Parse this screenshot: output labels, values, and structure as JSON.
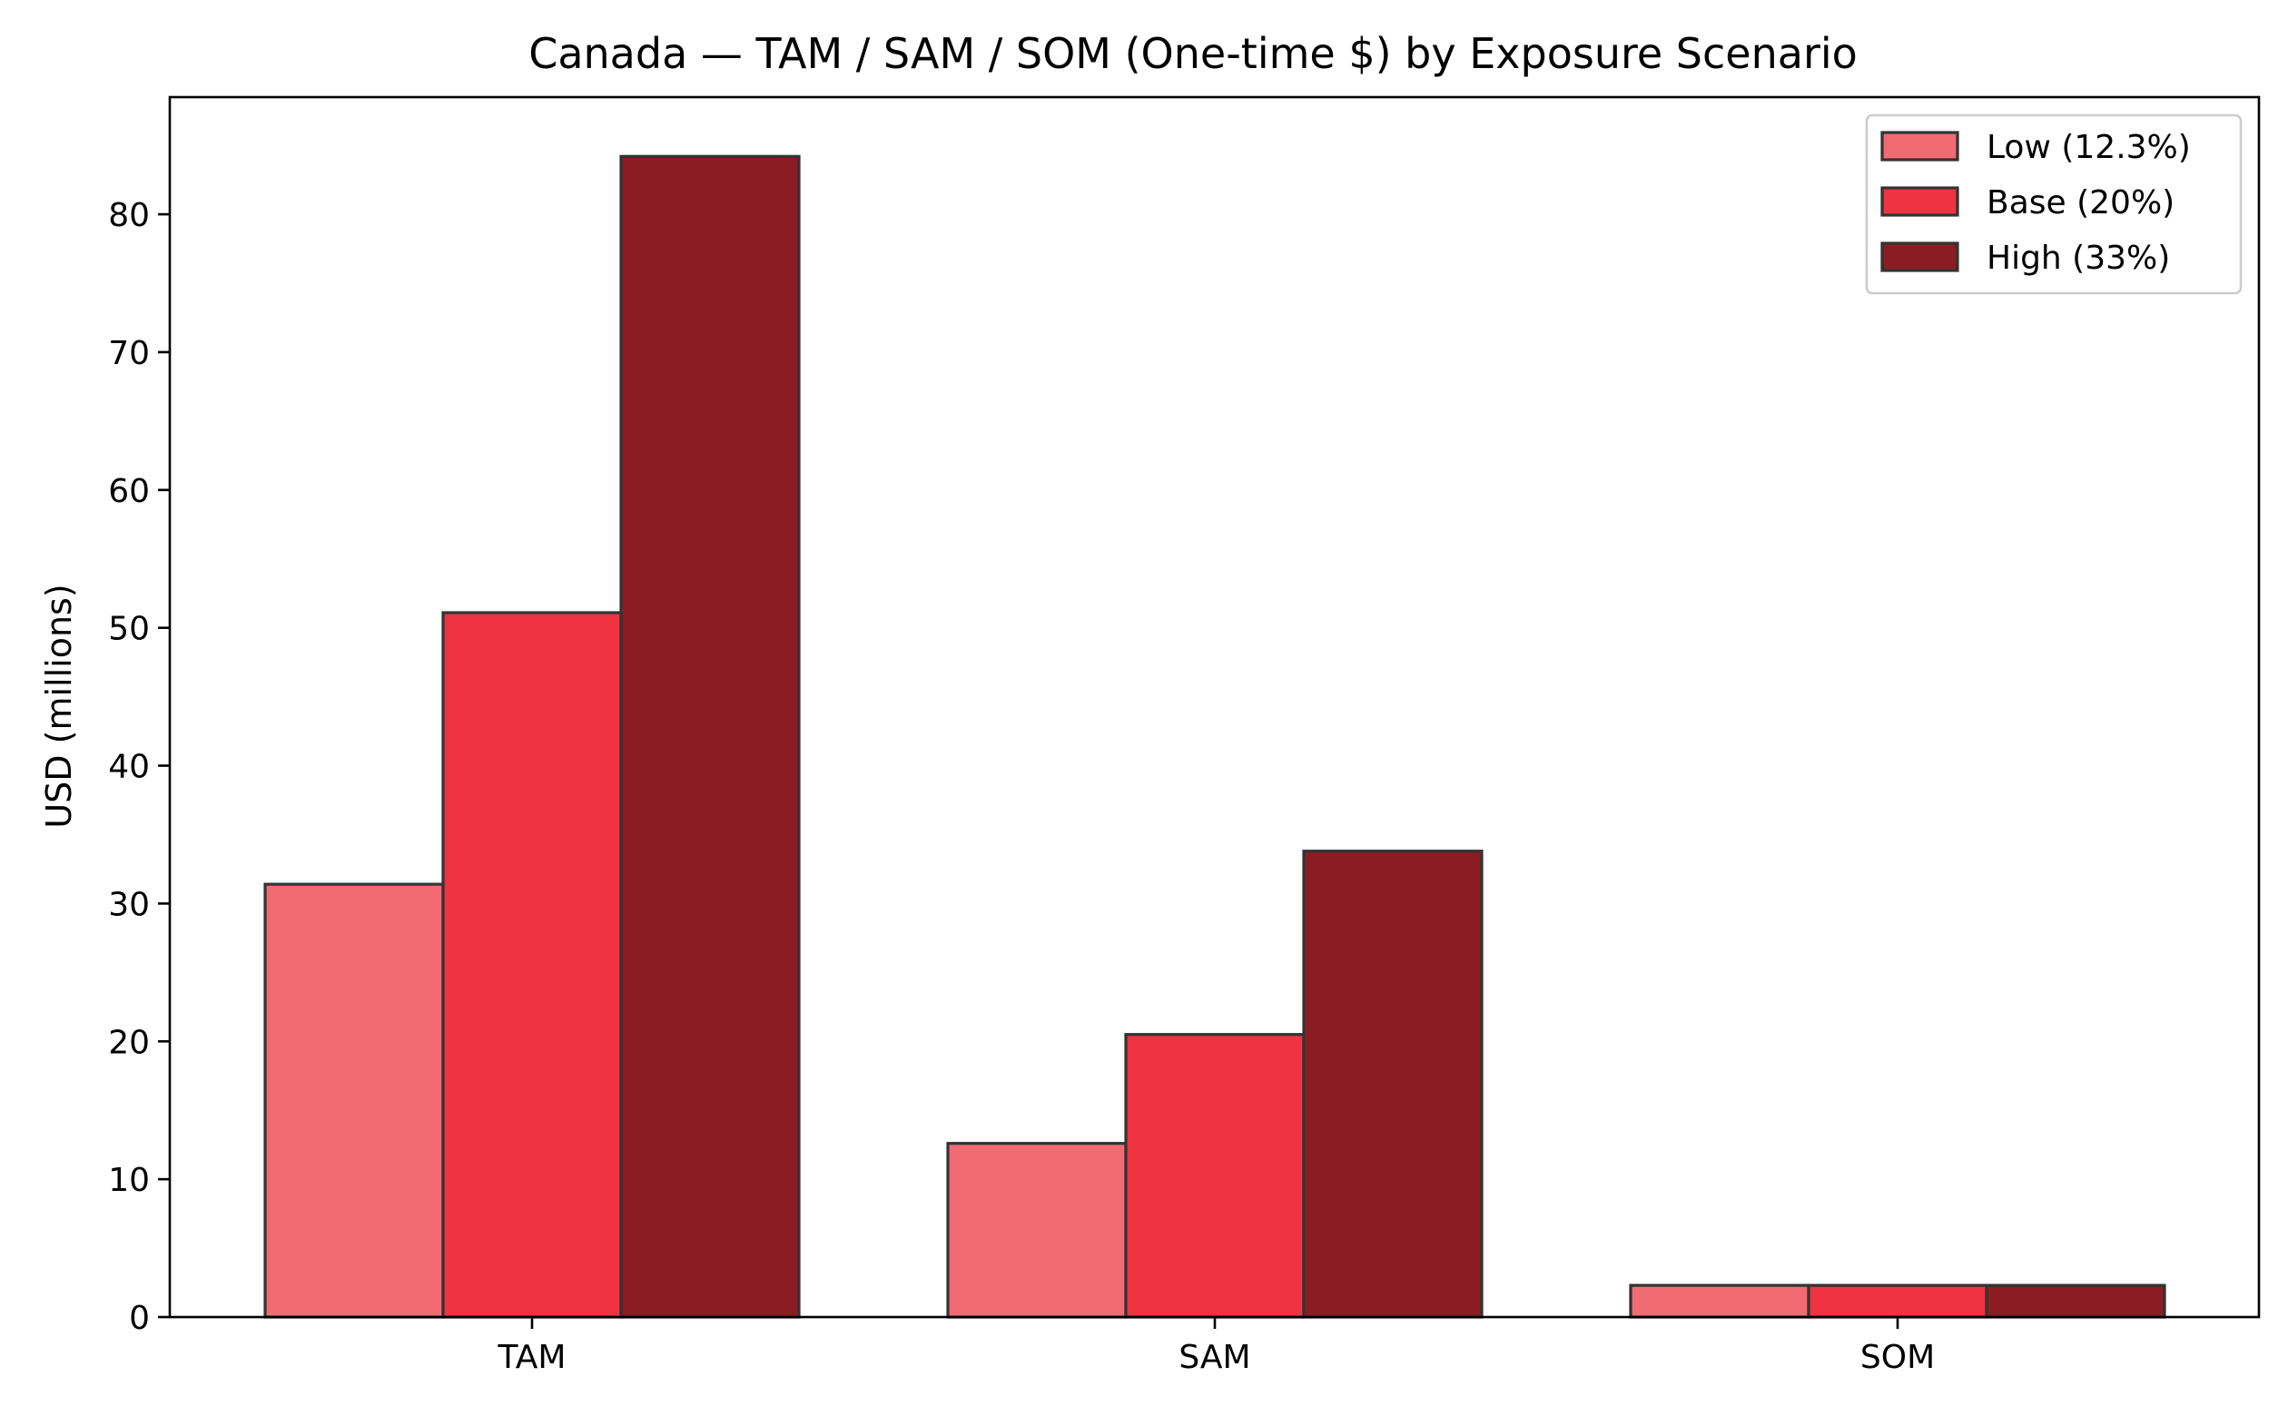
{
  "chart_data": {
    "type": "bar",
    "title": "Canada — TAM / SAM / SOM (One-time $) by Exposure Scenario",
    "xlabel": "",
    "ylabel": "USD (millions)",
    "categories": [
      "TAM",
      "SAM",
      "SOM"
    ],
    "series": [
      {
        "name": "Low (12.3%)",
        "color": "#f26b73",
        "values": [
          31.4,
          12.6,
          2.3
        ]
      },
      {
        "name": "Base (20%)",
        "color": "#ef3340",
        "values": [
          51.1,
          20.5,
          2.3
        ]
      },
      {
        "name": "High (33%)",
        "color": "#8b1c24",
        "values": [
          84.2,
          33.8,
          2.3
        ]
      }
    ],
    "ylim": [
      0,
      88.5
    ],
    "yticks": [
      0,
      10,
      20,
      30,
      40,
      50,
      60,
      70,
      80
    ],
    "grid": false,
    "legend_position": "top-right"
  }
}
